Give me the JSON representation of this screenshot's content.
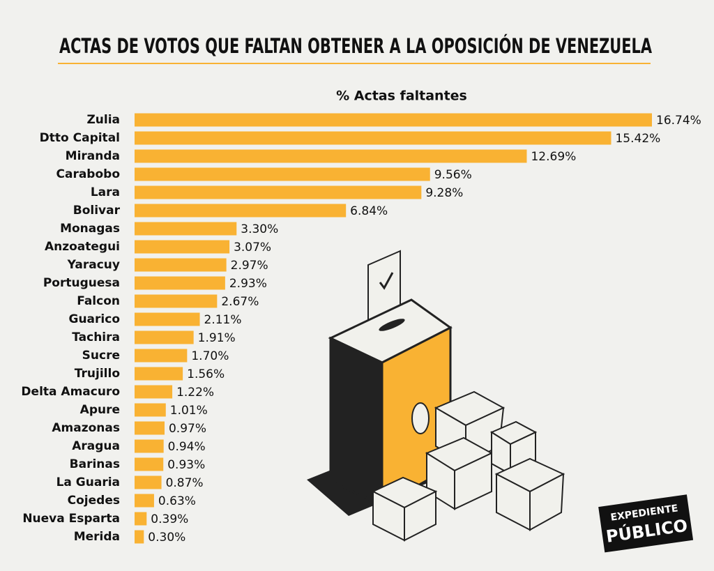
{
  "chart_data": {
    "type": "bar",
    "orientation": "horizontal",
    "title": "ACTAS DE VOTOS QUE FALTAN OBTENER A LA OPOSICIÓN DE VENEZUELA",
    "subtitle": "% Actas faltantes",
    "categories": [
      "Zulia",
      "Dtto Capital",
      "Miranda",
      "Carabobo",
      "Lara",
      "Bolivar",
      "Monagas",
      "Anzoategui",
      "Yaracuy",
      "Portuguesa",
      "Falcon",
      "Guarico",
      "Tachira",
      "Sucre",
      "Trujillo",
      "Delta Amacuro",
      "Apure",
      "Amazonas",
      "Aragua",
      "Barinas",
      "La Guaria",
      "Cojedes",
      "Nueva Esparta",
      "Merida"
    ],
    "values": [
      16.74,
      15.42,
      12.69,
      9.56,
      9.28,
      6.84,
      3.3,
      3.07,
      2.97,
      2.93,
      2.67,
      2.11,
      1.91,
      1.7,
      1.56,
      1.22,
      1.01,
      0.97,
      0.94,
      0.93,
      0.87,
      0.63,
      0.39,
      0.3
    ],
    "value_labels": [
      "16.74%",
      "15.42%",
      "12.69%",
      "9.56%",
      "9.28%",
      "6.84%",
      "3.30%",
      "3.07%",
      "2.97%",
      "2.93%",
      "2.67%",
      "2.11%",
      "1.91%",
      "1.70%",
      "1.56%",
      "1.22%",
      "1.01%",
      "0.97%",
      "0.94%",
      "0.93%",
      "0.87%",
      "0.63%",
      "0.39%",
      "0.30%"
    ],
    "color": "#f9b233",
    "annotations": [
      "EXPEDIENTE",
      "PÚBLICO"
    ]
  }
}
